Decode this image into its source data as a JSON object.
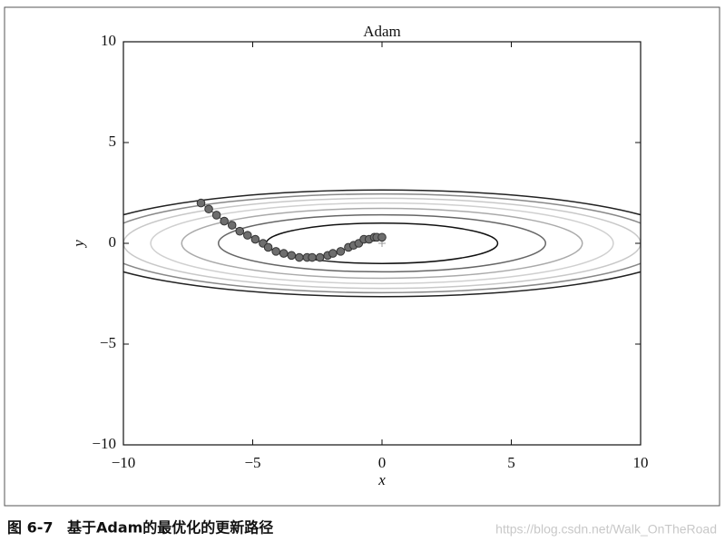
{
  "chart_data": {
    "type": "scatter",
    "title": "Adam",
    "xlabel": "x",
    "ylabel": "y",
    "x": [
      -7.0,
      -6.7,
      -6.4,
      -6.1,
      -5.8,
      -5.5,
      -5.2,
      -4.9,
      -4.6,
      -4.4,
      -4.1,
      -3.8,
      -3.5,
      -3.2,
      -2.9,
      -2.7,
      -2.4,
      -2.1,
      -1.9,
      -1.6,
      -1.3,
      -1.1,
      -0.9,
      -0.7,
      -0.5,
      -0.3,
      -0.2,
      0.0
    ],
    "y": [
      2.0,
      1.7,
      1.4,
      1.1,
      0.9,
      0.6,
      0.4,
      0.2,
      0.0,
      -0.2,
      -0.4,
      -0.5,
      -0.6,
      -0.7,
      -0.7,
      -0.7,
      -0.7,
      -0.6,
      -0.5,
      -0.4,
      -0.2,
      -0.1,
      0.0,
      0.2,
      0.2,
      0.3,
      0.3,
      0.3
    ],
    "color": "#6e6e6e",
    "contour_levels": [
      1,
      2,
      3,
      4,
      5,
      6,
      7
    ],
    "contour_colors": [
      "#111111",
      "#666666",
      "#aaaaaa",
      "#d0d0d0",
      "#c8c8c8",
      "#888888",
      "#222222"
    ],
    "minimum": {
      "x": 0,
      "y": 0
    },
    "xlim": [
      -10,
      10
    ],
    "ylim": [
      -10,
      10
    ],
    "xticks": [
      {
        "value": -10,
        "label": "−10"
      },
      {
        "value": -5,
        "label": "−5"
      },
      0,
      5,
      10
    ],
    "yticks": [
      {
        "value": -10,
        "label": "−10"
      },
      {
        "value": -5,
        "label": "−5"
      },
      0,
      5,
      10
    ]
  },
  "caption": {
    "label": "图 6-7",
    "text": "基于Adam的最优化的更新路径",
    "watermark": "https://blog.csdn.net/Walk_OnTheRoad"
  }
}
